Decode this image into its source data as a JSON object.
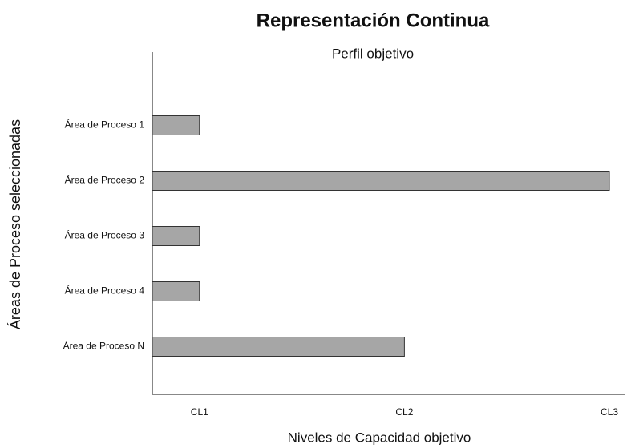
{
  "chart_data": {
    "type": "bar",
    "orientation": "horizontal",
    "title": "Representación Continua",
    "subtitle": "Perfil objetivo",
    "x_label": "Niveles de Capacidad objetivo",
    "y_label": "Áreas de Proceso seleccionadas",
    "categories": [
      "Área de Proceso 1",
      "Área de Proceso 2",
      "Área de Proceso 3",
      "Área de Proceso 4",
      "Área de Proceso N"
    ],
    "values": [
      1,
      3,
      1,
      1,
      2
    ],
    "color": "#a6a6a6",
    "xlim": [
      0.77,
      3
    ],
    "xticks": [
      {
        "value": 1,
        "label": "CL1"
      },
      {
        "value": 2,
        "label": "CL2"
      },
      {
        "value": 3,
        "label": "CL3"
      }
    ],
    "grid": false
  }
}
